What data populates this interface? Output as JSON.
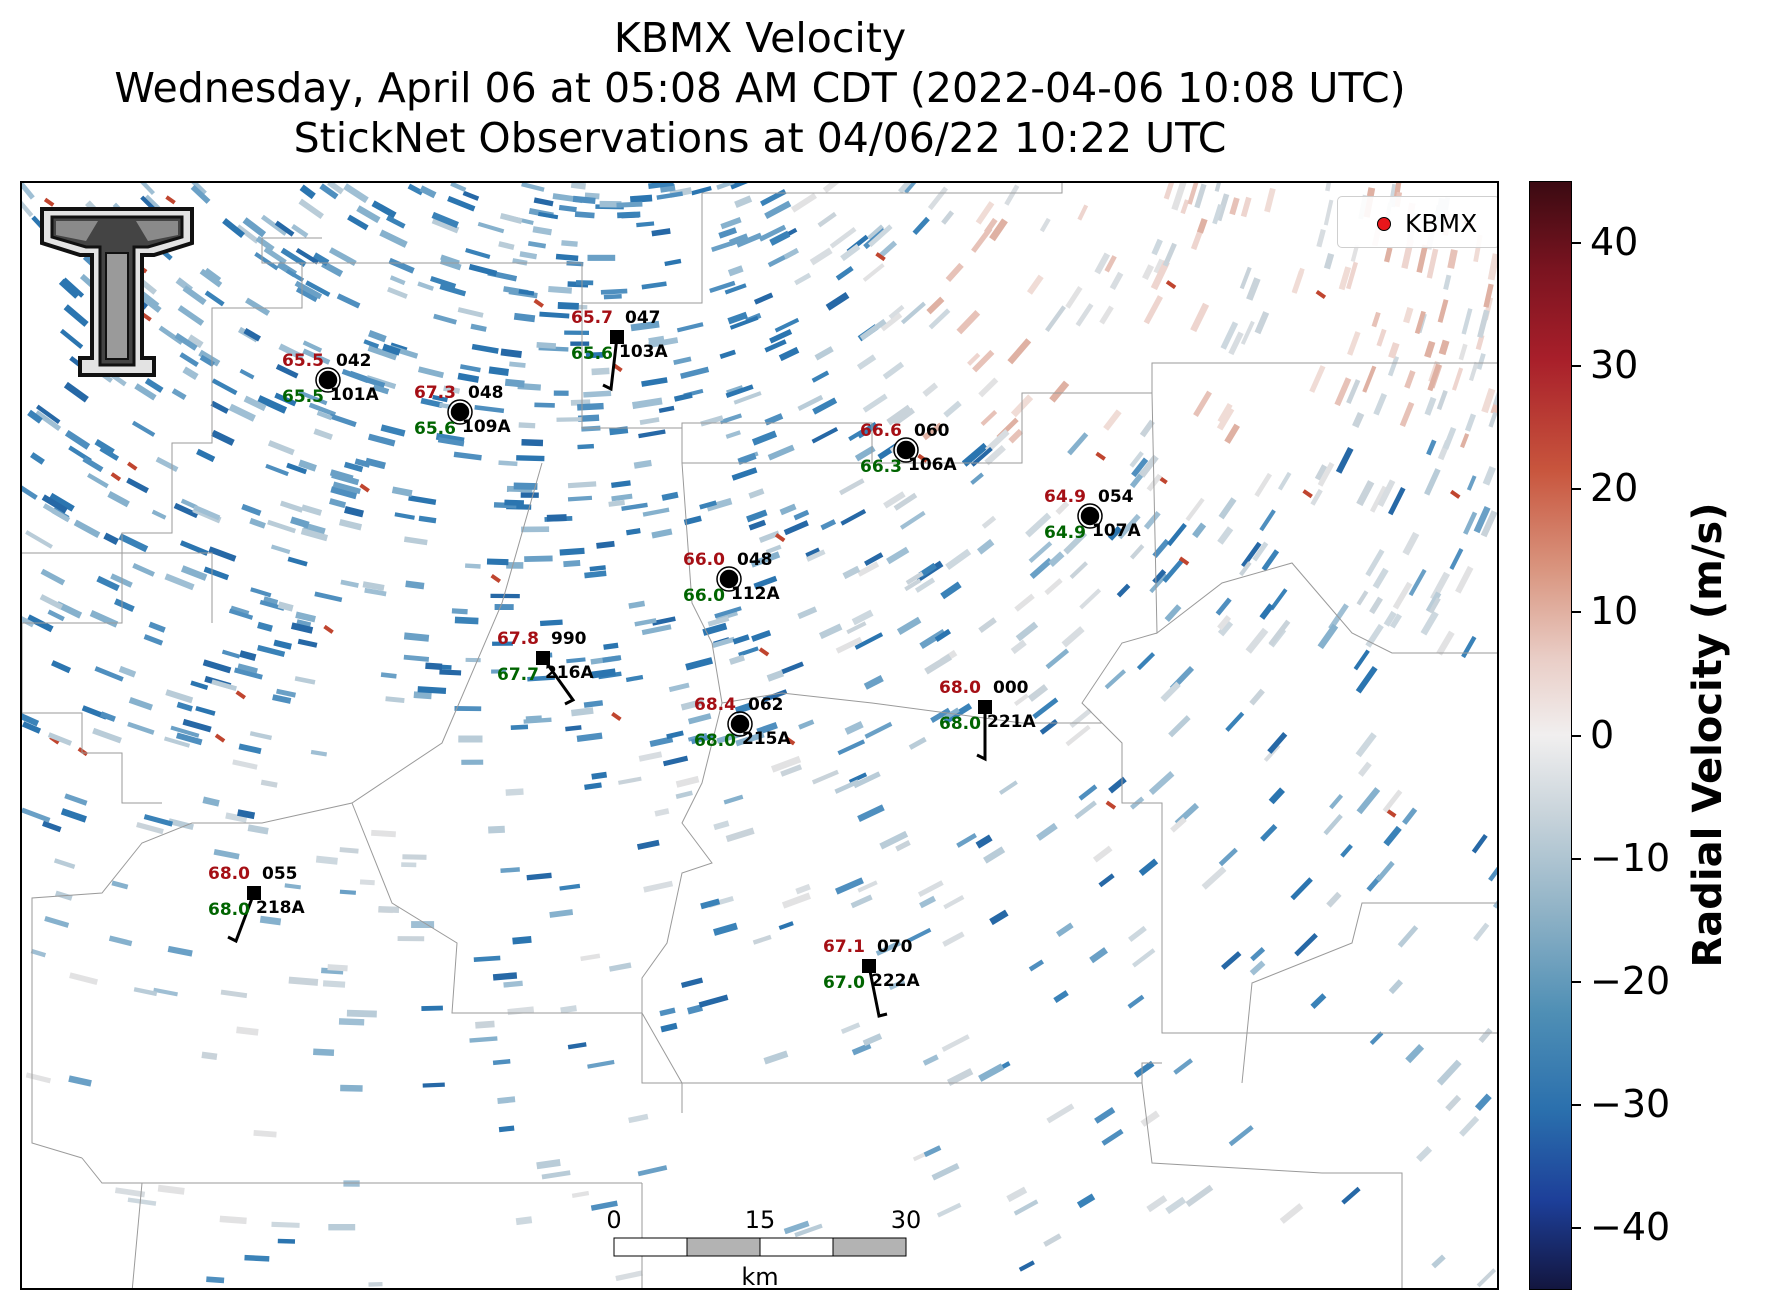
{
  "title": {
    "line1": "KBMX Velocity",
    "line2": "Wednesday, April 06 at 05:08 AM CDT (2022-04-06 10:08 UTC)",
    "line3": "StickNet Observations at 04/06/22 10:22 UTC"
  },
  "legend": {
    "label": "KBMX",
    "marker_color": "#e8161b"
  },
  "colorbar": {
    "title": "Radial Velocity (m/s)",
    "ticks": [
      {
        "value": 40,
        "label": "40"
      },
      {
        "value": 30,
        "label": "30"
      },
      {
        "value": 20,
        "label": "20"
      },
      {
        "value": 10,
        "label": "10"
      },
      {
        "value": 0,
        "label": "0"
      },
      {
        "value": -10,
        "label": "−10"
      },
      {
        "value": -20,
        "label": "−20"
      },
      {
        "value": -30,
        "label": "−30"
      },
      {
        "value": -40,
        "label": "−40"
      }
    ],
    "range": [
      -45,
      45
    ],
    "colormap": "blue-white-red diverging"
  },
  "scale_bar": {
    "labels": [
      "0",
      "15",
      "30"
    ],
    "unit": "km"
  },
  "colors": {
    "temperature_text": "#a50f15",
    "dewpoint_text": "#006400",
    "station_marker": "#000000",
    "boundaries": "#a0a0a0"
  },
  "logo": {
    "name": "Texas Tech Double T logo"
  },
  "stations": [
    {
      "id": "101A",
      "temp": "65.5",
      "dewpoint": "65.5",
      "pressure": "042",
      "marker": "circle"
    },
    {
      "id": "109A",
      "temp": "67.3",
      "dewpoint": "65.6",
      "pressure": "048",
      "marker": "circle"
    },
    {
      "id": "103A",
      "temp": "65.7",
      "dewpoint": "65.6",
      "pressure": "047",
      "marker": "square"
    },
    {
      "id": "106A",
      "temp": "66.6",
      "dewpoint": "66.3",
      "pressure": "060",
      "marker": "circle"
    },
    {
      "id": "107A",
      "temp": "64.9",
      "dewpoint": "64.9",
      "pressure": "054",
      "marker": "circle"
    },
    {
      "id": "112A",
      "temp": "66.0",
      "dewpoint": "66.0",
      "pressure": "048",
      "marker": "circle"
    },
    {
      "id": "216A",
      "temp": "67.8",
      "dewpoint": "67.7",
      "pressure": "990",
      "marker": "square"
    },
    {
      "id": "215A",
      "temp": "68.4",
      "dewpoint": "68.0",
      "pressure": "062",
      "marker": "circle"
    },
    {
      "id": "221A",
      "temp": "68.0",
      "dewpoint": "68.0",
      "pressure": "000",
      "marker": "square"
    },
    {
      "id": "218A",
      "temp": "68.0",
      "dewpoint": "68.0",
      "pressure": "055",
      "marker": "square"
    },
    {
      "id": "222A",
      "temp": "67.1",
      "dewpoint": "67.0",
      "pressure": "070",
      "marker": "square"
    }
  ]
}
